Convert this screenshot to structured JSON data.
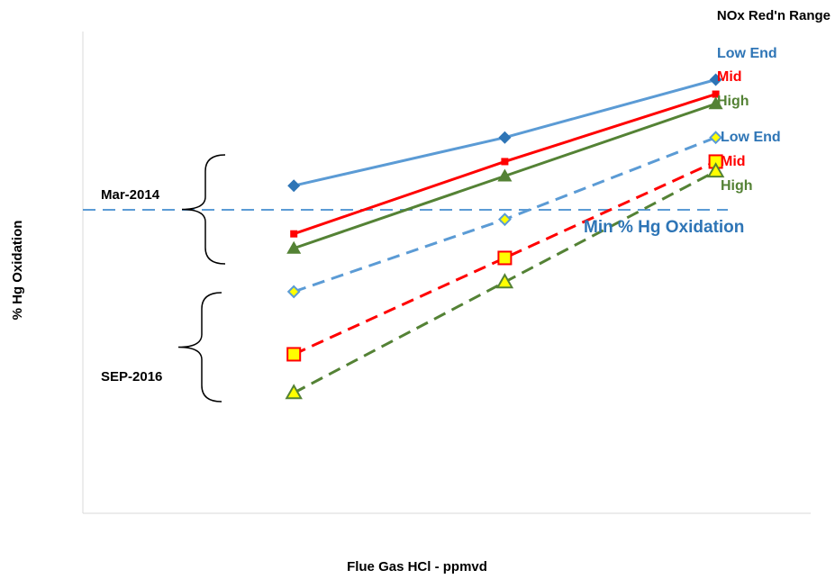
{
  "chart_data": {
    "type": "line",
    "title": "",
    "xlabel": "Flue Gas HCl - ppmvd",
    "ylabel": "% Hg Oxidation",
    "x": [
      1,
      2,
      3
    ],
    "xlim": [
      0,
      3.45
    ],
    "ylim": [
      0,
      100
    ],
    "grid": false,
    "legend_title": "NOx Red'n Range",
    "threshold": {
      "label": "Min % Hg Oxidation",
      "value": 63,
      "color": "#5b9bd5"
    },
    "groups": [
      {
        "label": "Mar-2014",
        "series_indices": [
          0,
          1,
          2
        ]
      },
      {
        "label": "SEP-2016",
        "series_indices": [
          3,
          4,
          5
        ]
      }
    ],
    "series": [
      {
        "name": "Low End",
        "values": [
          68,
          78,
          90
        ],
        "color": "#5b9bd5",
        "marker": "diamond",
        "dashed": false,
        "marker_fill": "#2e75b6"
      },
      {
        "name": "Mid",
        "values": [
          58,
          73,
          87
        ],
        "color": "#ff0000",
        "marker": "square",
        "dashed": false,
        "marker_fill": "#ff0000"
      },
      {
        "name": "High",
        "values": [
          55,
          70,
          85
        ],
        "color": "#548235",
        "marker": "triangle",
        "dashed": false,
        "marker_fill": "#548235"
      },
      {
        "name": "Low End",
        "values": [
          46,
          61,
          78
        ],
        "color": "#5b9bd5",
        "marker": "diamond",
        "dashed": true,
        "marker_fill": "#ffff00"
      },
      {
        "name": "Mid",
        "values": [
          33,
          53,
          73
        ],
        "color": "#ff0000",
        "marker": "square",
        "dashed": true,
        "marker_fill": "#ffff00"
      },
      {
        "name": "High",
        "values": [
          25,
          48,
          71
        ],
        "color": "#548235",
        "marker": "triangle",
        "dashed": true,
        "marker_fill": "#ffff00"
      }
    ]
  }
}
